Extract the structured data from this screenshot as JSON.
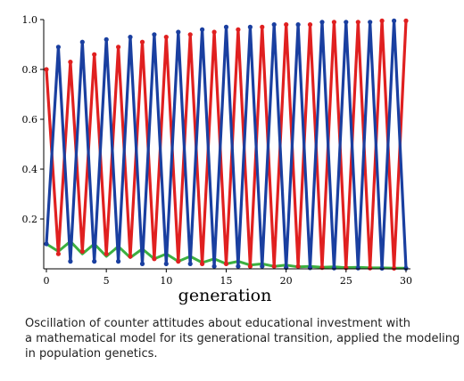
{
  "chart_data": {
    "type": "line",
    "xlabel": "generation",
    "ylabel": "",
    "xlim": [
      0,
      30
    ],
    "ylim": [
      0,
      1.0
    ],
    "x_ticks": [
      0,
      5,
      10,
      15,
      20,
      25,
      30
    ],
    "y_ticks": [
      0.2,
      0.4,
      0.6,
      0.8,
      1.0
    ],
    "x_tick_labels": [
      "0",
      "5",
      "10",
      "15",
      "20",
      "25",
      "30"
    ],
    "y_tick_labels": [
      "0.2",
      "0.4",
      "0.6",
      "0.8",
      "1.0"
    ],
    "grid": false,
    "x": [
      0,
      1,
      2,
      3,
      4,
      5,
      6,
      7,
      8,
      9,
      10,
      11,
      12,
      13,
      14,
      15,
      16,
      17,
      18,
      19,
      20,
      21,
      22,
      23,
      24,
      25,
      26,
      27,
      28,
      29,
      30
    ],
    "series": [
      {
        "color": "#e02020",
        "values": [
          0.8,
          0.06,
          0.83,
          0.07,
          0.86,
          0.06,
          0.89,
          0.05,
          0.91,
          0.04,
          0.93,
          0.03,
          0.94,
          0.02,
          0.95,
          0.02,
          0.96,
          0.01,
          0.97,
          0.01,
          0.98,
          0.01,
          0.98,
          0.005,
          0.99,
          0.004,
          0.99,
          0.003,
          0.995,
          0.002,
          0.995
        ]
      },
      {
        "color": "#1a3fa0",
        "values": [
          0.1,
          0.89,
          0.03,
          0.91,
          0.03,
          0.92,
          0.03,
          0.93,
          0.02,
          0.94,
          0.02,
          0.95,
          0.02,
          0.96,
          0.01,
          0.97,
          0.01,
          0.97,
          0.01,
          0.98,
          0.005,
          0.98,
          0.004,
          0.99,
          0.003,
          0.99,
          0.003,
          0.99,
          0.002,
          0.995,
          0.002
        ]
      },
      {
        "color": "#3cb040",
        "values": [
          0.1,
          0.07,
          0.11,
          0.06,
          0.1,
          0.05,
          0.09,
          0.045,
          0.08,
          0.04,
          0.06,
          0.03,
          0.05,
          0.025,
          0.04,
          0.02,
          0.03,
          0.015,
          0.02,
          0.01,
          0.015,
          0.008,
          0.01,
          0.006,
          0.008,
          0.005,
          0.006,
          0.004,
          0.004,
          0.003,
          0.003
        ]
      }
    ]
  },
  "caption": "Oscillation of counter attitudes about educational investment with\na mathematical model for its generational transition, applied the modeling\nin population genetics."
}
